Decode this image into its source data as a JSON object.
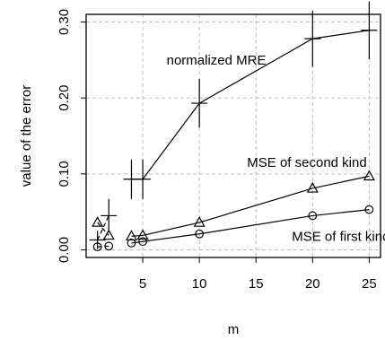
{
  "chart_data": {
    "type": "line",
    "xlabel": "m",
    "ylabel": "value of the error",
    "xlim": [
      0,
      26
    ],
    "ylim": [
      -0.01,
      0.31
    ],
    "x_ticks": [
      {
        "value": 5,
        "label": "5"
      },
      {
        "value": 10,
        "label": "10"
      },
      {
        "value": 15,
        "label": "15"
      },
      {
        "value": 20,
        "label": "20"
      },
      {
        "value": 25,
        "label": "25"
      }
    ],
    "y_ticks": [
      {
        "value": 0.0,
        "label": "0.00"
      },
      {
        "value": 0.1,
        "label": "0.10"
      },
      {
        "value": 0.2,
        "label": "0.20"
      },
      {
        "value": 0.3,
        "label": "0.30"
      }
    ],
    "grid": true,
    "series": [
      {
        "name": "normalized MRE",
        "marker": "plus",
        "line": "solid",
        "points": [
          {
            "x": 1,
            "y": 0.013,
            "err": 0.012,
            "line_to_next": "dashed"
          },
          {
            "x": 2,
            "y": 0.045,
            "err": 0.022,
            "line_to_next": "none"
          },
          {
            "x": 4,
            "y": 0.093,
            "err": 0.026,
            "line_to_next": "solid"
          },
          {
            "x": 5,
            "y": 0.093,
            "err": 0.026,
            "line_to_next": "solid"
          },
          {
            "x": 10,
            "y": 0.193,
            "err": 0.032,
            "line_to_next": "solid"
          },
          {
            "x": 20,
            "y": 0.278,
            "err": 0.037,
            "line_to_next": "solid"
          },
          {
            "x": 25,
            "y": 0.289,
            "err": 0.038,
            "line_to_next": "none"
          }
        ]
      },
      {
        "name": "MSE of second kind",
        "marker": "triangle",
        "line": "solid",
        "points": [
          {
            "x": 1,
            "y": 0.036,
            "line_to_next": "dashed"
          },
          {
            "x": 2,
            "y": 0.019,
            "line_to_next": "none"
          },
          {
            "x": 4,
            "y": 0.018,
            "line_to_next": "solid"
          },
          {
            "x": 5,
            "y": 0.019,
            "line_to_next": "solid"
          },
          {
            "x": 10,
            "y": 0.036,
            "line_to_next": "solid"
          },
          {
            "x": 20,
            "y": 0.081,
            "line_to_next": "solid"
          },
          {
            "x": 25,
            "y": 0.097,
            "line_to_next": "none"
          }
        ]
      },
      {
        "name": "MSE of first kind",
        "marker": "circle",
        "line": "solid",
        "points": [
          {
            "x": 1,
            "y": 0.004,
            "line_to_next": "dashed"
          },
          {
            "x": 2,
            "y": 0.005,
            "line_to_next": "none"
          },
          {
            "x": 4,
            "y": 0.009,
            "line_to_next": "solid"
          },
          {
            "x": 5,
            "y": 0.011,
            "line_to_next": "solid"
          },
          {
            "x": 10,
            "y": 0.021,
            "line_to_next": "solid"
          },
          {
            "x": 20,
            "y": 0.045,
            "line_to_next": "solid"
          },
          {
            "x": 25,
            "y": 0.053,
            "line_to_next": "none"
          }
        ]
      }
    ],
    "annotations": [
      {
        "text": "normalized MRE",
        "x": 11.5,
        "y": 0.25
      },
      {
        "text": "MSE of second kind",
        "x": 19.5,
        "y": 0.115
      },
      {
        "text": "MSE of first kind",
        "x": 22.5,
        "y": 0.018
      }
    ]
  }
}
